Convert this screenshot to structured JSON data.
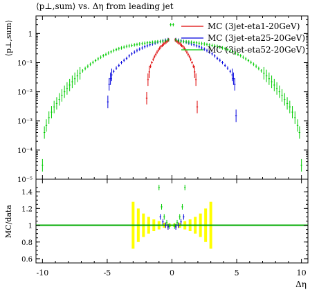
{
  "chart_data": [
    {
      "type": "scatter",
      "title": "⟨p⊥,sum⟩ vs. Δη from leading jet",
      "ylabel": "⟨p⊥,sum⟩",
      "xlabel": "",
      "xlim": [
        -10.5,
        10.5
      ],
      "ylim": [
        1e-05,
        4
      ],
      "yscale": "log",
      "y_ticks": [
        {
          "v": 1e-05,
          "label": "10⁻⁵"
        },
        {
          "v": 0.0001,
          "label": "10⁻⁴"
        },
        {
          "v": 0.001,
          "label": "10⁻³"
        },
        {
          "v": 0.01,
          "label": "10⁻²"
        },
        {
          "v": 0.1,
          "label": "10⁻¹"
        },
        {
          "v": 1,
          "label": "1"
        }
      ],
      "legend_position": "top-right",
      "series": [
        {
          "name": "MC (3jet-eta1-20GeV)",
          "color": "#dd0000",
          "points": [
            [
              -1.95,
              0.006
            ],
            [
              -1.85,
              0.026
            ],
            [
              -1.75,
              0.048
            ],
            [
              -1.65,
              0.075
            ],
            [
              -1.55,
              0.1
            ],
            [
              -1.45,
              0.13
            ],
            [
              -1.35,
              0.16
            ],
            [
              -1.25,
              0.19
            ],
            [
              -1.15,
              0.23
            ],
            [
              -1.05,
              0.27
            ],
            [
              -0.95,
              0.31
            ],
            [
              -0.85,
              0.35
            ],
            [
              -0.75,
              0.39
            ],
            [
              -0.65,
              0.43
            ],
            [
              -0.55,
              0.47
            ],
            [
              -0.45,
              0.51
            ],
            [
              -0.35,
              0.55
            ],
            [
              -0.25,
              0.6
            ],
            [
              0.25,
              0.6
            ],
            [
              0.35,
              0.55
            ],
            [
              0.45,
              0.51
            ],
            [
              0.55,
              0.47
            ],
            [
              0.65,
              0.43
            ],
            [
              0.75,
              0.39
            ],
            [
              0.85,
              0.35
            ],
            [
              0.95,
              0.31
            ],
            [
              1.05,
              0.27
            ],
            [
              1.15,
              0.23
            ],
            [
              1.25,
              0.19
            ],
            [
              1.35,
              0.16
            ],
            [
              1.45,
              0.13
            ],
            [
              1.55,
              0.1
            ],
            [
              1.65,
              0.075
            ],
            [
              1.75,
              0.048
            ],
            [
              1.85,
              0.026
            ],
            [
              1.95,
              0.003
            ]
          ]
        },
        {
          "name": "MC (3jet-eta25-20GeV)",
          "color": "#0000dd",
          "points": [
            [
              -4.95,
              0.0045
            ],
            [
              -4.85,
              0.018
            ],
            [
              -4.75,
              0.028
            ],
            [
              -4.65,
              0.038
            ],
            [
              -4.5,
              0.05
            ],
            [
              -4.3,
              0.065
            ],
            [
              -4.1,
              0.08
            ],
            [
              -3.9,
              0.1
            ],
            [
              -3.7,
              0.12
            ],
            [
              -3.5,
              0.14
            ],
            [
              -3.3,
              0.17
            ],
            [
              -3.1,
              0.2
            ],
            [
              -2.9,
              0.23
            ],
            [
              -2.7,
              0.26
            ],
            [
              -2.5,
              0.29
            ],
            [
              -2.3,
              0.32
            ],
            [
              -2.1,
              0.35
            ],
            [
              -1.9,
              0.38
            ],
            [
              -1.7,
              0.41
            ],
            [
              -1.5,
              0.44
            ],
            [
              -1.3,
              0.47
            ],
            [
              -1.1,
              0.5
            ],
            [
              -0.9,
              0.53
            ],
            [
              -0.7,
              0.56
            ],
            [
              -0.5,
              0.59
            ],
            [
              -0.3,
              0.62
            ],
            [
              0.3,
              0.62
            ],
            [
              0.5,
              0.59
            ],
            [
              0.7,
              0.56
            ],
            [
              0.9,
              0.53
            ],
            [
              1.1,
              0.5
            ],
            [
              1.3,
              0.47
            ],
            [
              1.5,
              0.44
            ],
            [
              1.7,
              0.41
            ],
            [
              1.9,
              0.38
            ],
            [
              2.1,
              0.35
            ],
            [
              2.3,
              0.32
            ],
            [
              2.5,
              0.29
            ],
            [
              2.7,
              0.26
            ],
            [
              2.9,
              0.23
            ],
            [
              3.1,
              0.2
            ],
            [
              3.3,
              0.17
            ],
            [
              3.5,
              0.14
            ],
            [
              3.7,
              0.12
            ],
            [
              3.9,
              0.1
            ],
            [
              4.1,
              0.08
            ],
            [
              4.3,
              0.065
            ],
            [
              4.5,
              0.05
            ],
            [
              4.65,
              0.038
            ],
            [
              4.75,
              0.028
            ],
            [
              4.85,
              0.018
            ],
            [
              4.95,
              0.0015
            ]
          ]
        },
        {
          "name": "MC (3jet-eta52-20GeV)",
          "color": "#00cc00",
          "points": [
            [
              -10.0,
              3e-05
            ],
            [
              -9.85,
              0.0004
            ],
            [
              -9.7,
              0.0007
            ],
            [
              -9.5,
              0.0013
            ],
            [
              -9.3,
              0.002
            ],
            [
              -9.1,
              0.003
            ],
            [
              -8.9,
              0.004
            ],
            [
              -8.7,
              0.0055
            ],
            [
              -8.5,
              0.0075
            ],
            [
              -8.3,
              0.01
            ],
            [
              -8.1,
              0.013
            ],
            [
              -7.9,
              0.017
            ],
            [
              -7.7,
              0.022
            ],
            [
              -7.5,
              0.028
            ],
            [
              -7.3,
              0.035
            ],
            [
              -7.1,
              0.043
            ],
            [
              -6.9,
              0.052
            ],
            [
              -6.7,
              0.063
            ],
            [
              -6.5,
              0.075
            ],
            [
              -6.3,
              0.088
            ],
            [
              -6.1,
              0.102
            ],
            [
              -5.9,
              0.118
            ],
            [
              -5.7,
              0.135
            ],
            [
              -5.5,
              0.153
            ],
            [
              -5.3,
              0.172
            ],
            [
              -5.1,
              0.192
            ],
            [
              -4.9,
              0.213
            ],
            [
              -4.7,
              0.235
            ],
            [
              -4.5,
              0.258
            ],
            [
              -4.3,
              0.28
            ],
            [
              -4.1,
              0.3
            ],
            [
              -3.9,
              0.32
            ],
            [
              -3.7,
              0.34
            ],
            [
              -3.5,
              0.36
            ],
            [
              -3.3,
              0.375
            ],
            [
              -3.1,
              0.39
            ],
            [
              -2.9,
              0.405
            ],
            [
              -2.7,
              0.42
            ],
            [
              -2.5,
              0.435
            ],
            [
              -2.3,
              0.45
            ],
            [
              -2.1,
              0.465
            ],
            [
              -1.9,
              0.48
            ],
            [
              -1.7,
              0.49
            ],
            [
              -1.5,
              0.5
            ],
            [
              -1.3,
              0.51
            ],
            [
              -1.1,
              0.52
            ],
            [
              -0.9,
              0.53
            ],
            [
              -0.7,
              0.545
            ],
            [
              -0.5,
              0.56
            ],
            [
              -0.3,
              0.6
            ],
            [
              -0.1,
              2.0
            ],
            [
              0.1,
              2.0
            ],
            [
              0.3,
              0.6
            ],
            [
              0.5,
              0.56
            ],
            [
              0.7,
              0.545
            ],
            [
              0.9,
              0.53
            ],
            [
              1.1,
              0.52
            ],
            [
              1.3,
              0.51
            ],
            [
              1.5,
              0.5
            ],
            [
              1.7,
              0.49
            ],
            [
              1.9,
              0.48
            ],
            [
              2.1,
              0.465
            ],
            [
              2.3,
              0.45
            ],
            [
              2.5,
              0.435
            ],
            [
              2.7,
              0.42
            ],
            [
              2.9,
              0.405
            ],
            [
              3.1,
              0.39
            ],
            [
              3.3,
              0.375
            ],
            [
              3.5,
              0.36
            ],
            [
              3.7,
              0.34
            ],
            [
              3.9,
              0.32
            ],
            [
              4.1,
              0.3
            ],
            [
              4.3,
              0.28
            ],
            [
              4.5,
              0.258
            ],
            [
              4.7,
              0.235
            ],
            [
              4.9,
              0.213
            ],
            [
              5.1,
              0.192
            ],
            [
              5.3,
              0.172
            ],
            [
              5.5,
              0.153
            ],
            [
              5.7,
              0.135
            ],
            [
              5.9,
              0.118
            ],
            [
              6.1,
              0.102
            ],
            [
              6.3,
              0.088
            ],
            [
              6.5,
              0.075
            ],
            [
              6.7,
              0.063
            ],
            [
              6.9,
              0.052
            ],
            [
              7.1,
              0.043
            ],
            [
              7.3,
              0.035
            ],
            [
              7.5,
              0.028
            ],
            [
              7.7,
              0.022
            ],
            [
              7.9,
              0.017
            ],
            [
              8.1,
              0.013
            ],
            [
              8.3,
              0.01
            ],
            [
              8.5,
              0.0075
            ],
            [
              8.7,
              0.0055
            ],
            [
              8.9,
              0.004
            ],
            [
              9.1,
              0.003
            ],
            [
              9.3,
              0.002
            ],
            [
              9.5,
              0.0013
            ],
            [
              9.7,
              0.0007
            ],
            [
              9.85,
              0.0004
            ],
            [
              10.0,
              3e-05
            ]
          ]
        }
      ]
    },
    {
      "type": "scatter",
      "title": "",
      "ylabel": "MC/data",
      "xlabel": "Δη",
      "xlim": [
        -10.5,
        10.5
      ],
      "ylim": [
        0.55,
        1.55
      ],
      "x_ticks": [
        {
          "v": -10,
          "label": "-10"
        },
        {
          "v": -5,
          "label": "-5"
        },
        {
          "v": 0,
          "label": "0"
        },
        {
          "v": 5,
          "label": "5"
        },
        {
          "v": 10,
          "label": "10"
        }
      ],
      "y_ticks": [
        {
          "v": 0.6,
          "label": "0.6"
        },
        {
          "v": 0.8,
          "label": "0.8"
        },
        {
          "v": 1,
          "label": "1"
        },
        {
          "v": 1.2,
          "label": "1.2"
        },
        {
          "v": 1.4,
          "label": "1.4"
        }
      ],
      "reference_line": {
        "y": 1,
        "color": "#00aa00"
      },
      "uncertainty_band": {
        "color": "#ffff00",
        "points": [
          [
            -3.0,
            1.28
          ],
          [
            -2.6,
            1.2
          ],
          [
            -2.2,
            1.14
          ],
          [
            -1.8,
            1.1
          ],
          [
            -1.4,
            1.07
          ],
          [
            -1.0,
            1.05
          ],
          [
            -0.6,
            1.03
          ],
          [
            -0.2,
            1.02
          ],
          [
            0.2,
            1.02
          ],
          [
            0.6,
            1.03
          ],
          [
            1.0,
            1.05
          ],
          [
            1.4,
            1.07
          ],
          [
            1.8,
            1.1
          ],
          [
            2.2,
            1.14
          ],
          [
            2.6,
            1.2
          ],
          [
            3.0,
            1.28
          ]
        ]
      },
      "series": [
        {
          "name": "MC (3jet-eta1-20GeV)",
          "color": "#dd0000",
          "points": [
            [
              -0.5,
              1.0
            ],
            [
              -0.3,
              0.98
            ],
            [
              0.3,
              0.98
            ],
            [
              0.5,
              1.0
            ]
          ]
        },
        {
          "name": "MC (3jet-eta25-20GeV)",
          "color": "#0000dd",
          "points": [
            [
              -0.9,
              1.1
            ],
            [
              -0.7,
              1.04
            ],
            [
              -0.5,
              1.0
            ],
            [
              -0.3,
              0.98
            ],
            [
              0.3,
              0.98
            ],
            [
              0.5,
              1.0
            ],
            [
              0.7,
              1.04
            ],
            [
              0.9,
              1.1
            ]
          ]
        },
        {
          "name": "MC (3jet-eta52-20GeV)",
          "color": "#00cc00",
          "points": [
            [
              -1.0,
              1.45
            ],
            [
              -0.8,
              1.22
            ],
            [
              -0.6,
              1.1
            ],
            [
              -0.4,
              1.03
            ],
            [
              -0.2,
              0.99
            ],
            [
              0.2,
              0.99
            ],
            [
              0.4,
              1.03
            ],
            [
              0.6,
              1.1
            ],
            [
              0.8,
              1.22
            ],
            [
              1.0,
              1.45
            ]
          ]
        }
      ]
    }
  ]
}
